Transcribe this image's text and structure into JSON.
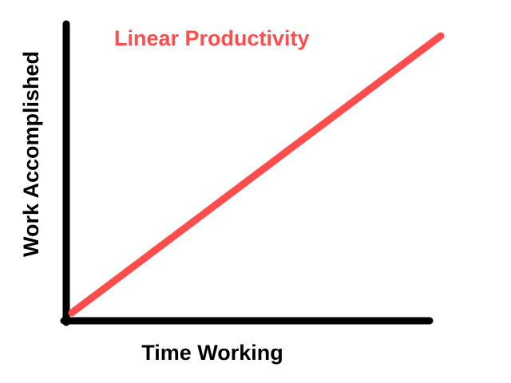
{
  "chart_data": {
    "type": "line",
    "title": "Linear Productivity",
    "xlabel": "Time Working",
    "ylabel": "Work Accomplished",
    "xlim": [
      0,
      1
    ],
    "ylim": [
      0,
      1
    ],
    "grid": false,
    "series": [
      {
        "color": "#ff4d4d",
        "x": [
          0,
          1
        ],
        "y": [
          0,
          1
        ]
      }
    ]
  },
  "colors": {
    "line": "#ff4d4d",
    "title": "#ff4d4d",
    "axis": "#000000",
    "background": "#ffffff"
  }
}
